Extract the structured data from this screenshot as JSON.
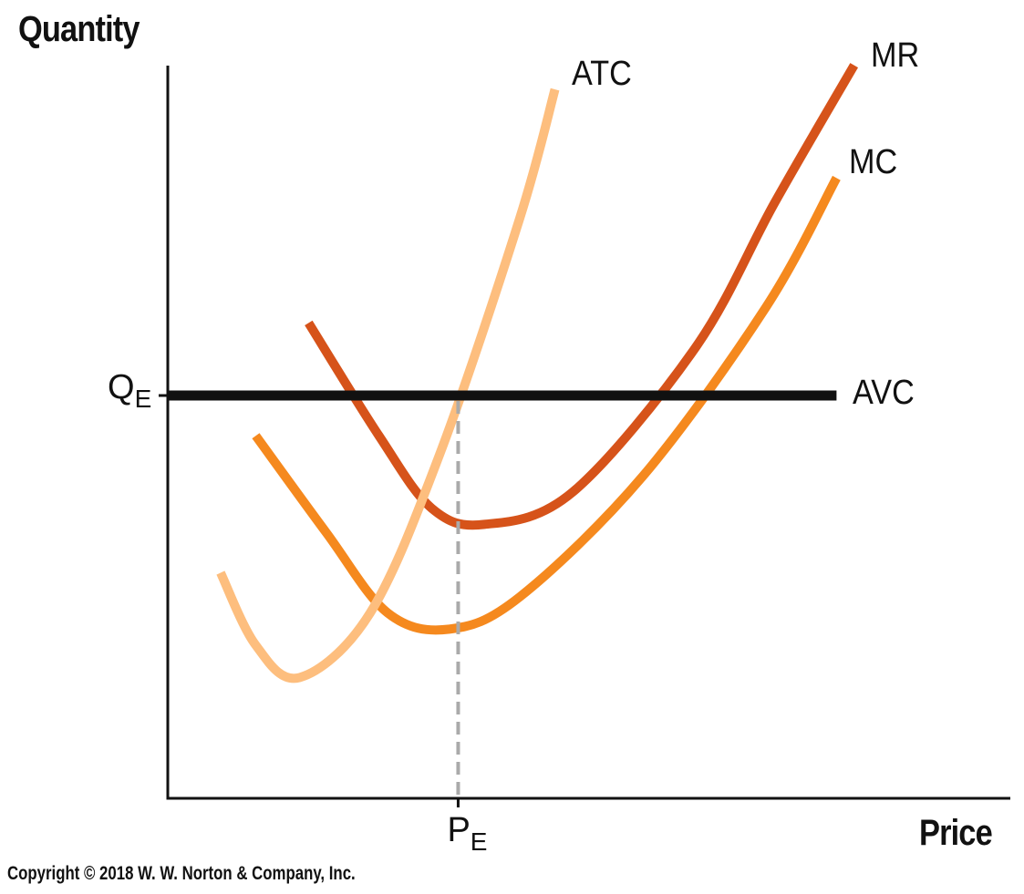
{
  "chart_data": {
    "type": "line",
    "ylabel": "Quantity",
    "xlabel": "Price",
    "xlim": [
      0,
      10
    ],
    "ylim": [
      0,
      10
    ],
    "grid": false,
    "series": [
      {
        "name": "ATC",
        "color": "#FDBE7E",
        "points": [
          [
            0.6,
            2.8
          ],
          [
            1.0,
            1.9
          ],
          [
            1.5,
            1.5
          ],
          [
            2.3,
            2.3
          ],
          [
            3.1,
            4.3
          ],
          [
            4.0,
            7.2
          ],
          [
            4.4,
            8.8
          ]
        ]
      },
      {
        "name": "MR",
        "color": "#D6531A",
        "points": [
          [
            1.6,
            5.9
          ],
          [
            2.4,
            4.5
          ],
          [
            3.0,
            3.6
          ],
          [
            3.6,
            3.4
          ],
          [
            4.6,
            3.8
          ],
          [
            6.0,
            5.6
          ],
          [
            6.9,
            7.4
          ],
          [
            7.8,
            9.1
          ]
        ]
      },
      {
        "name": "MC",
        "color": "#F5891E",
        "points": [
          [
            1.0,
            4.5
          ],
          [
            1.8,
            3.3
          ],
          [
            2.5,
            2.3
          ],
          [
            3.2,
            2.1
          ],
          [
            4.0,
            2.5
          ],
          [
            5.4,
            4.0
          ],
          [
            6.8,
            6.1
          ],
          [
            7.6,
            7.7
          ]
        ]
      },
      {
        "name": "AVC",
        "color": "#111111",
        "points": [
          [
            0.0,
            5.0
          ],
          [
            7.6,
            5.0
          ]
        ]
      }
    ],
    "equilibrium": {
      "x_label": "P",
      "x_sub": "E",
      "y_label": "Q",
      "y_sub": "E",
      "x": 3.3,
      "y": 5.0
    }
  },
  "copyright": "Copyright © 2018 W. W. Norton & Company, Inc."
}
